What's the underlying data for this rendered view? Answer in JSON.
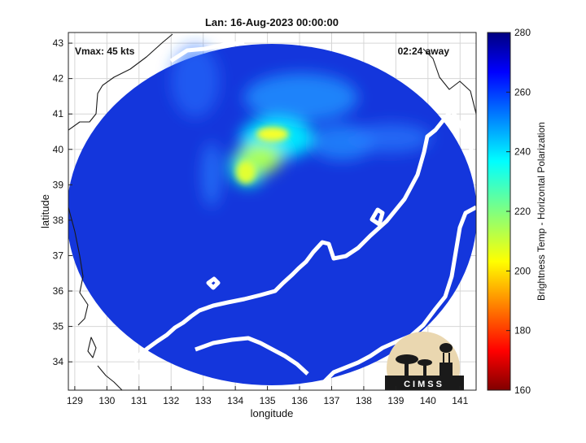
{
  "chart_data": {
    "type": "heatmap",
    "title": "Lan: 16-Aug-2023 00:00:00",
    "xlabel": "longitude",
    "ylabel": "latitude",
    "xlim": [
      128.8,
      141.5
    ],
    "ylim": [
      33.2,
      43.3
    ],
    "x_ticks": [
      "129",
      "130",
      "131",
      "132",
      "133",
      "134",
      "135",
      "136",
      "137",
      "138",
      "139",
      "140",
      "141"
    ],
    "y_ticks": [
      "34",
      "35",
      "36",
      "37",
      "38",
      "39",
      "40",
      "41",
      "42",
      "43"
    ],
    "grid": true,
    "annotations": {
      "vmax": "Vmax: 45 kts",
      "time_offset": "02:24 away"
    },
    "colorbar": {
      "label": "Brightness Temp - Horizontal Polarization",
      "range": [
        160,
        280
      ],
      "ticks": [
        "160",
        "180",
        "200",
        "220",
        "240",
        "260",
        "280"
      ],
      "colormap": "jet",
      "position": "right"
    },
    "swath": {
      "center_lon": 135.0,
      "center_lat": 38.2,
      "background_value": 265
    },
    "features": [
      {
        "name": "warm band core",
        "lon": 135.2,
        "lat": 40.1,
        "value": 212
      },
      {
        "name": "warm band west arm",
        "lon": 134.3,
        "lat": 39.4,
        "value": 220
      },
      {
        "name": "warm band arc",
        "lon": 135.8,
        "lat": 40.6,
        "value": 235
      },
      {
        "name": "northern arc",
        "lon": 136.0,
        "lat": 41.2,
        "value": 245
      },
      {
        "name": "western streak",
        "lon": 133.4,
        "lat": 39.0,
        "value": 250
      },
      {
        "name": "northwest streak",
        "lon": 133.0,
        "lat": 41.8,
        "value": 252
      },
      {
        "name": "eastern band",
        "lon": 137.6,
        "lat": 39.9,
        "value": 250
      },
      {
        "name": "outer band",
        "lon": 136.5,
        "lat": 40.3,
        "value": 244
      }
    ],
    "logo": {
      "text": "CIMSS"
    }
  }
}
